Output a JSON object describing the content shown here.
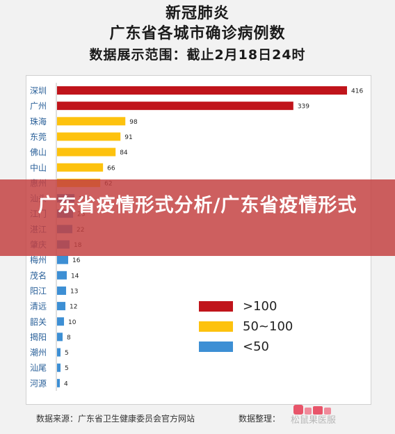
{
  "title_line1": "新冠肺炎",
  "title_line2": "广东省各城市确诊病例数",
  "title_line3": "数据展示范围：截止2月18日24时",
  "banner_text": "广东省疫情形式分析/广东省疫情形式",
  "footer": {
    "source": "数据来源：广东省卫生健康委员会官方网站",
    "organizer_label": "数据整理：",
    "watermark": "松鼠果医服"
  },
  "colors": {
    "high": "#c0141b",
    "mid": "#fdc20e",
    "low": "#3d8fd4"
  },
  "chart_data": {
    "type": "bar",
    "orientation": "horizontal",
    "categories": [
      "深圳",
      "广州",
      "珠海",
      "东莞",
      "佛山",
      "中山",
      "惠州",
      "汕头",
      "江门",
      "湛江",
      "肇庆",
      "梅州",
      "茂名",
      "阳江",
      "清远",
      "韶关",
      "揭阳",
      "潮州",
      "汕尾",
      "河源"
    ],
    "values": [
      416,
      339,
      98,
      91,
      84,
      66,
      62,
      25,
      23,
      22,
      18,
      16,
      14,
      13,
      12,
      10,
      8,
      5,
      5,
      4
    ],
    "color_groups": [
      "high",
      "high",
      "mid",
      "mid",
      "mid",
      "mid",
      "mid",
      "low",
      "low",
      "low",
      "low",
      "low",
      "low",
      "low",
      "low",
      "low",
      "low",
      "low",
      "low",
      "low"
    ],
    "legend": [
      {
        "key": "high",
        "label": ">100"
      },
      {
        "key": "mid",
        "label": "50~100"
      },
      {
        "key": "low",
        "label": "<50"
      }
    ],
    "legend_position": "bottom-right",
    "xlim": [
      0,
      416
    ],
    "grid": false
  }
}
